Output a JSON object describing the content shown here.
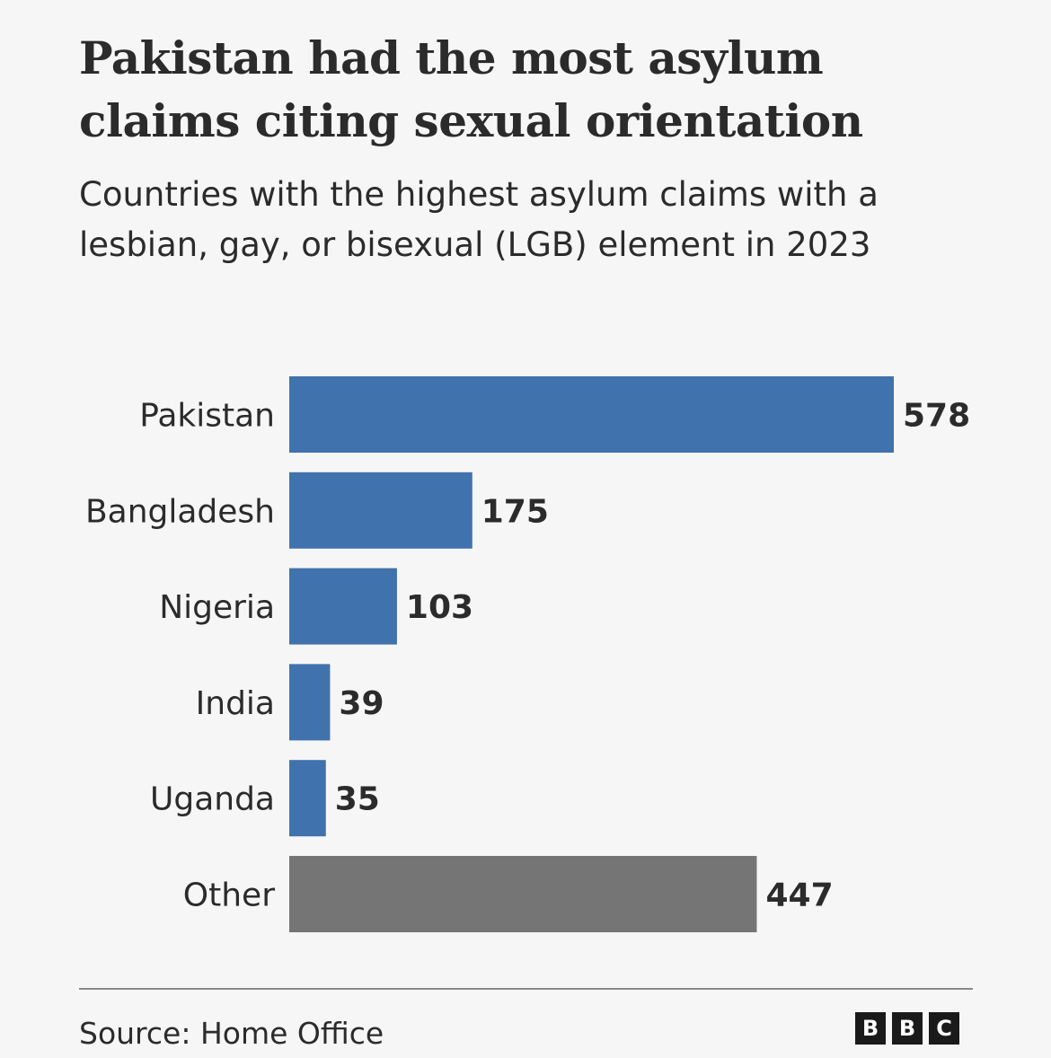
{
  "title": "Pakistan had the most asylum claims citing sexual orientation",
  "subtitle": "Countries with the highest asylum claims with a lesbian, gay, or bisexual (LGB) element in 2023",
  "source": "Source: Home Office",
  "logo": {
    "letters": [
      "B",
      "B",
      "C"
    ]
  },
  "colors": {
    "background": "#f6f6f6",
    "bar_country": "#4072ad",
    "bar_other": "#757575",
    "text": "#2b2b2b"
  },
  "chart_data": {
    "type": "bar",
    "orientation": "horizontal",
    "categories": [
      "Pakistan",
      "Bangladesh",
      "Nigeria",
      "India",
      "Uganda",
      "Other"
    ],
    "values": [
      578,
      175,
      103,
      39,
      35,
      447
    ],
    "highlight": [
      "country",
      "country",
      "country",
      "country",
      "country",
      "other"
    ],
    "title": "Pakistan had the most asylum claims citing sexual orientation",
    "xlabel": "",
    "ylabel": "",
    "xlim": [
      0,
      578
    ],
    "grid": false,
    "data_labels": true
  }
}
